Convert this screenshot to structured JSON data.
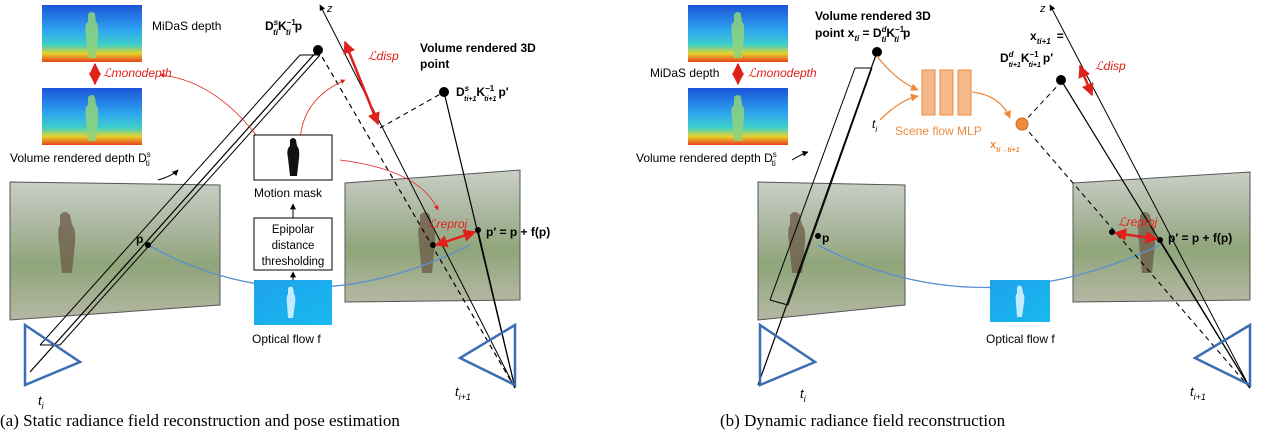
{
  "panel_a": {
    "midas_label": "MiDaS depth",
    "loss_monodepth": "ℒmonodepth",
    "volume_depth_label": "Volume rendered depth D",
    "volume_depth_sup": "s",
    "volume_depth_sub": "ti",
    "point_label": "D",
    "point_label_suffix": "K",
    "point_p": "p",
    "loss_disp": "ℒdisp",
    "vol3d_label_line1": "Volume rendered 3D",
    "vol3d_label_line2": "point",
    "vol3d_formula": "D",
    "motion_mask_label": "Motion mask",
    "epipolar_line1": "Epipolar",
    "epipolar_line2": "distance",
    "epipolar_line3": "thresholding",
    "optical_flow_label": "Optical flow f",
    "loss_reproj": "ℒreproj",
    "pprime_formula": "p′ = p + f(p)",
    "p_label": "p",
    "axis_z": "z",
    "cam_ti": "t",
    "cam_ti_sub": "i",
    "cam_ti1": "t",
    "cam_ti1_sub": "i+1",
    "caption": "(a) Static radiance field reconstruction and pose estimation"
  },
  "panel_b": {
    "midas_label": "MiDaS depth",
    "loss_monodepth": "ℒmonodepth",
    "volume_depth_label": "Volume rendered depth D",
    "volume_depth_sup": "s",
    "volume_depth_sub": "ti",
    "vol3d_label_line1": "Volume rendered 3D",
    "vol3d_label_line2": "point x",
    "vol3d_label_eq": " = D",
    "scene_flow_label": "Scene flow MLP",
    "t_label": "t",
    "t_sub": "i",
    "x_next_label": "x",
    "x_next_eq": "=",
    "x_next_formula": "D",
    "loss_disp": "ℒdisp",
    "x_flow_label": "x",
    "x_flow_sub": "ti→ti+1",
    "loss_reproj": "ℒreproj",
    "pprime_formula": "p′ = p + f(p)",
    "p_label": "p",
    "optical_flow_label": "Optical flow f",
    "axis_z": "z",
    "cam_ti": "t",
    "cam_ti_sub": "i",
    "cam_ti1": "t",
    "cam_ti1_sub": "i+1",
    "caption": "(b) Dynamic radiance field reconstruction"
  },
  "colors": {
    "red": "#e0201b",
    "orange": "#ee8a3c",
    "orange_fill": "#f4b98a",
    "blue": "#3b6db3",
    "flow_blue": "#1aa7e8",
    "arc_blue": "#5b8fd0"
  }
}
